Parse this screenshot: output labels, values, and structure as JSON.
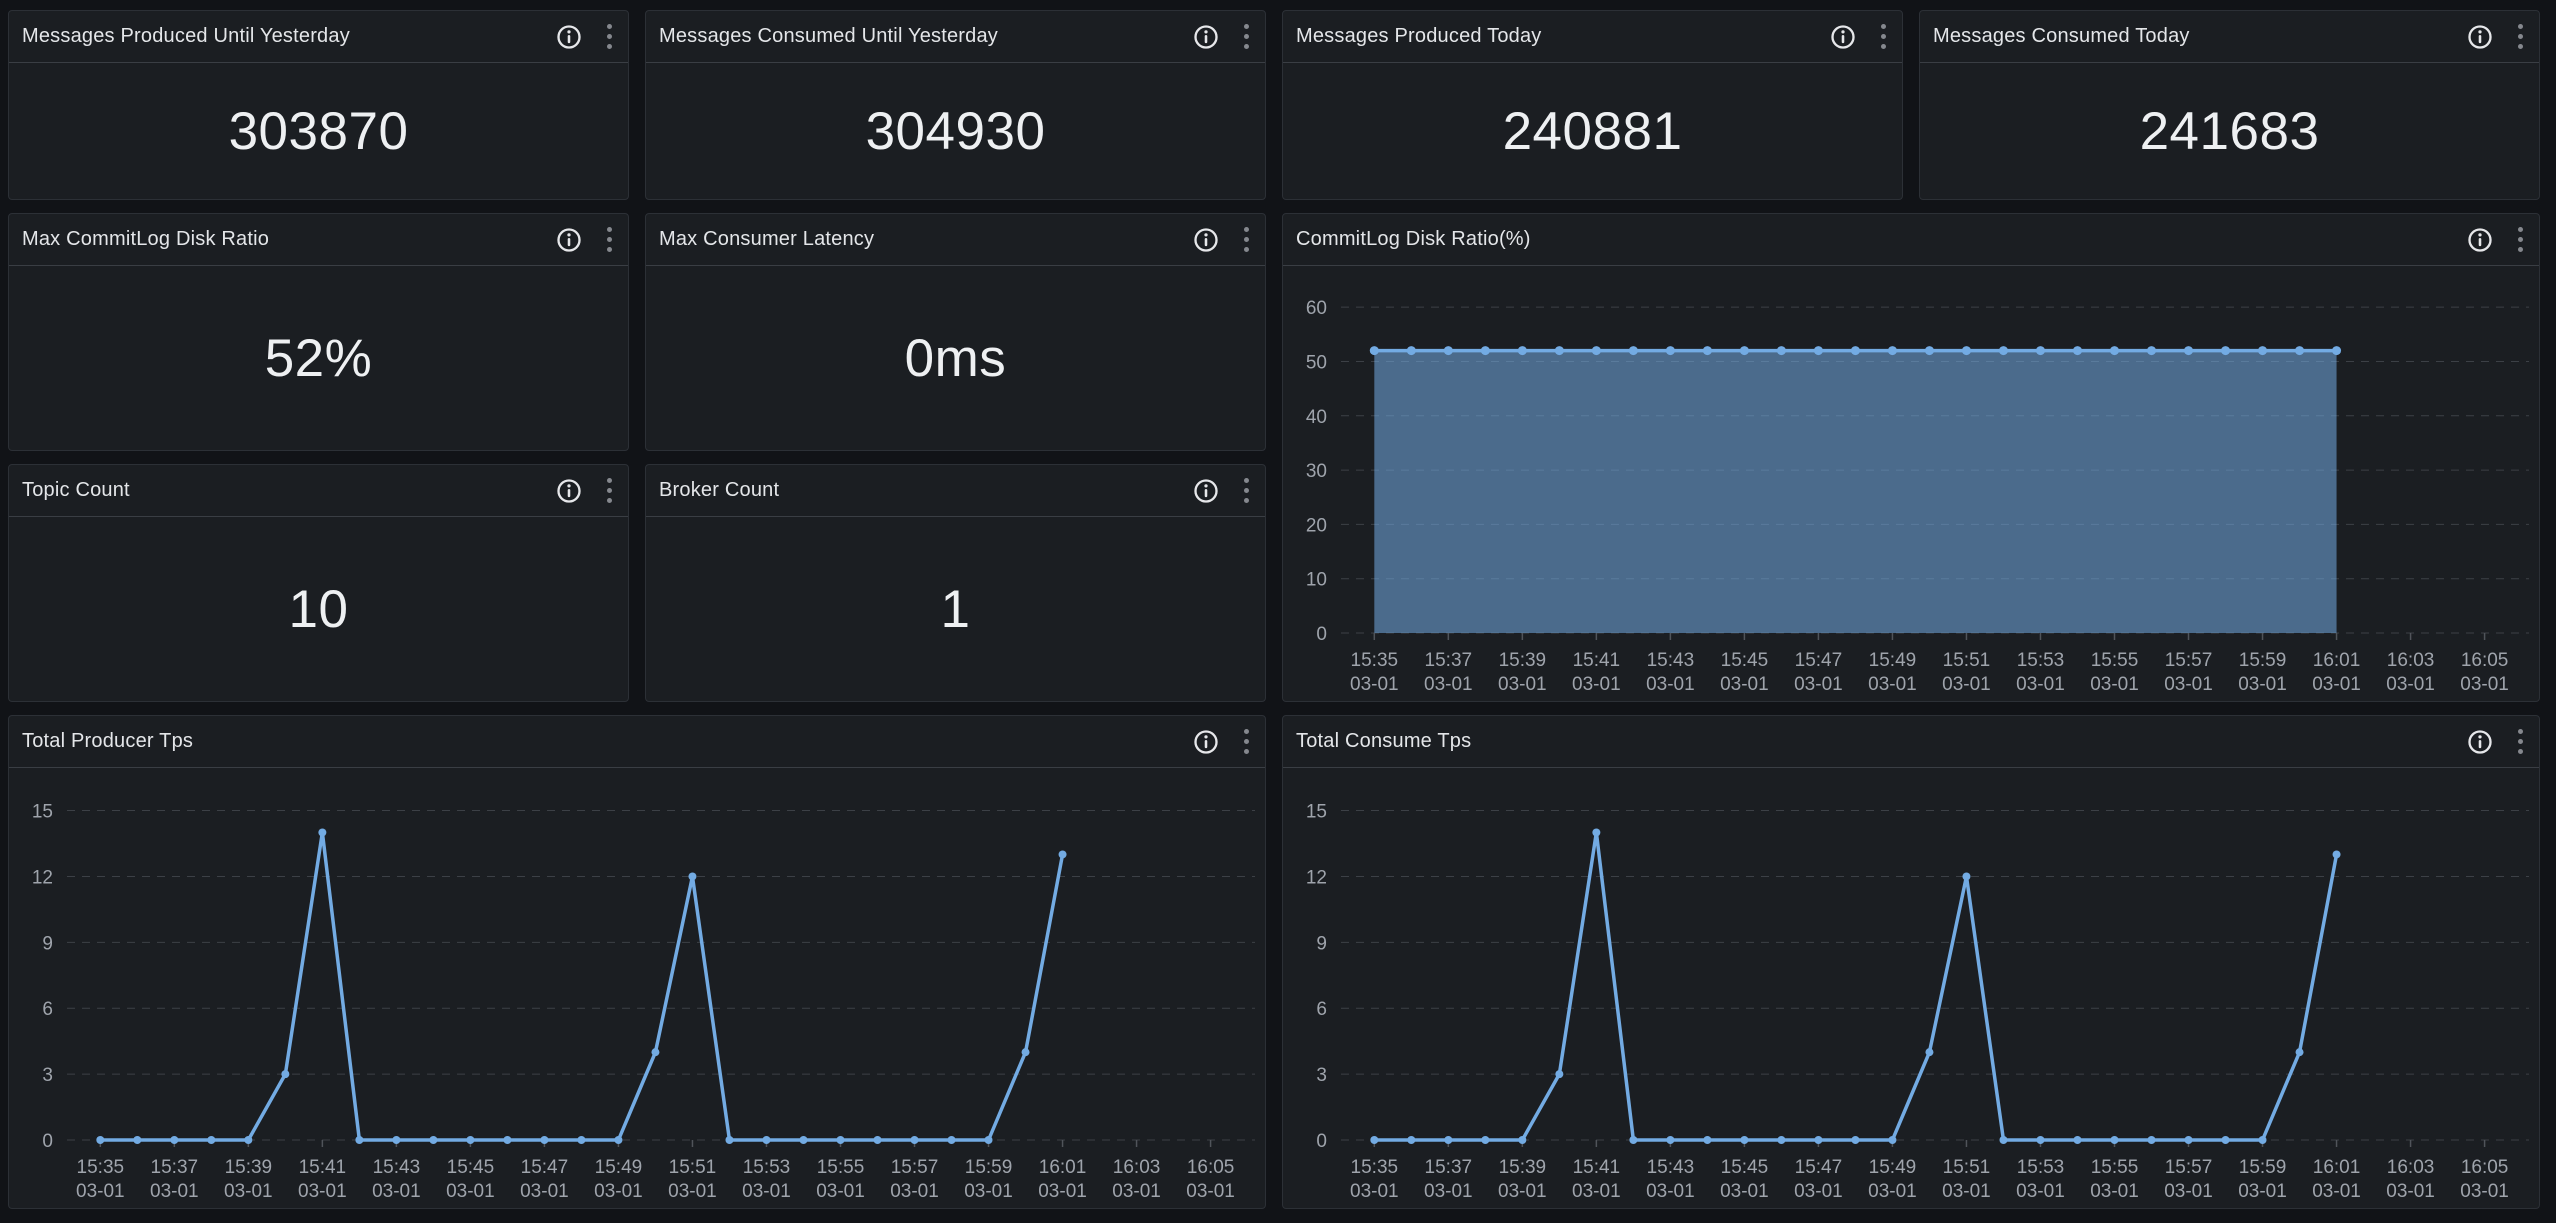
{
  "theme": {
    "page_bg": "#111317",
    "panel_bg": "#1b1e22",
    "panel_border": "#2c3036",
    "title_color": "#e4e6e9",
    "value_color": "#eef0f2",
    "axis_text_color": "#9fa4ac",
    "gridline_color": "#3c4046",
    "series_blue": "#73abe3"
  },
  "panels": {
    "stats": [
      {
        "title": "Messages Produced Until Yesterday",
        "value": "303870"
      },
      {
        "title": "Messages Consumed Until Yesterday",
        "value": "304930"
      },
      {
        "title": "Messages Produced Today",
        "value": "240881"
      },
      {
        "title": "Messages Consumed Today",
        "value": "241683"
      },
      {
        "title": "Max CommitLog Disk Ratio",
        "value": "52%"
      },
      {
        "title": "Max Consumer Latency",
        "value": "0ms"
      },
      {
        "title": "Topic Count",
        "value": "10"
      },
      {
        "title": "Broker Count",
        "value": "1"
      }
    ],
    "icons": {
      "info": "info-icon",
      "menu": "kebab-menu-icon"
    }
  },
  "chart_data": [
    {
      "id": "commitlog-disk-ratio",
      "type": "area",
      "title": "CommitLog Disk Ratio(%)",
      "line_color": "#73abe3",
      "fill_opacity": 0.55,
      "marker_radius": 4.5,
      "line_width": 3.5,
      "grid": true,
      "legend": "hidden",
      "ylim": [
        0,
        65
      ],
      "y_ticks": [
        0,
        10,
        20,
        30,
        40,
        50,
        60
      ],
      "x_axis_minutes": [
        -0.9,
        31.2
      ],
      "start_time": "15:35",
      "interval_minutes": 1,
      "values": [
        52,
        52,
        52,
        52,
        52,
        52,
        52,
        52,
        52,
        52,
        52,
        52,
        52,
        52,
        52,
        52,
        52,
        52,
        52,
        52,
        52,
        52,
        52,
        52,
        52,
        52,
        52
      ],
      "x_ticks": [
        {
          "t": "15:35",
          "d": "03-01",
          "m": 0
        },
        {
          "t": "15:37",
          "d": "03-01",
          "m": 2
        },
        {
          "t": "15:39",
          "d": "03-01",
          "m": 4
        },
        {
          "t": "15:41",
          "d": "03-01",
          "m": 6
        },
        {
          "t": "15:43",
          "d": "03-01",
          "m": 8
        },
        {
          "t": "15:45",
          "d": "03-01",
          "m": 10
        },
        {
          "t": "15:47",
          "d": "03-01",
          "m": 12
        },
        {
          "t": "15:49",
          "d": "03-01",
          "m": 14
        },
        {
          "t": "15:51",
          "d": "03-01",
          "m": 16
        },
        {
          "t": "15:53",
          "d": "03-01",
          "m": 18
        },
        {
          "t": "15:55",
          "d": "03-01",
          "m": 20
        },
        {
          "t": "15:57",
          "d": "03-01",
          "m": 22
        },
        {
          "t": "15:59",
          "d": "03-01",
          "m": 24
        },
        {
          "t": "16:01",
          "d": "03-01",
          "m": 26
        },
        {
          "t": "16:03",
          "d": "03-01",
          "m": 28
        },
        {
          "t": "16:05",
          "d": "03-01",
          "m": 30
        }
      ]
    },
    {
      "id": "total-producer-tps",
      "type": "line",
      "title": "Total Producer Tps",
      "line_color": "#73abe3",
      "fill_opacity": 0,
      "marker_radius": 4,
      "line_width": 3.5,
      "grid": true,
      "legend": "hidden",
      "ylim": [
        0,
        16.3
      ],
      "y_ticks": [
        0,
        3,
        6,
        9,
        12,
        15
      ],
      "x_axis_minutes": [
        -0.9,
        31.2
      ],
      "start_time": "15:35",
      "interval_minutes": 1,
      "values": [
        0,
        0,
        0,
        0,
        0,
        3,
        14,
        0,
        0,
        0,
        0,
        0,
        0,
        0,
        0,
        4,
        12,
        0,
        0,
        0,
        0,
        0,
        0,
        0,
        0,
        4,
        13
      ],
      "x_ticks": [
        {
          "t": "15:35",
          "d": "03-01",
          "m": 0
        },
        {
          "t": "15:37",
          "d": "03-01",
          "m": 2
        },
        {
          "t": "15:39",
          "d": "03-01",
          "m": 4
        },
        {
          "t": "15:41",
          "d": "03-01",
          "m": 6
        },
        {
          "t": "15:43",
          "d": "03-01",
          "m": 8
        },
        {
          "t": "15:45",
          "d": "03-01",
          "m": 10
        },
        {
          "t": "15:47",
          "d": "03-01",
          "m": 12
        },
        {
          "t": "15:49",
          "d": "03-01",
          "m": 14
        },
        {
          "t": "15:51",
          "d": "03-01",
          "m": 16
        },
        {
          "t": "15:53",
          "d": "03-01",
          "m": 18
        },
        {
          "t": "15:55",
          "d": "03-01",
          "m": 20
        },
        {
          "t": "15:57",
          "d": "03-01",
          "m": 22
        },
        {
          "t": "15:59",
          "d": "03-01",
          "m": 24
        },
        {
          "t": "16:01",
          "d": "03-01",
          "m": 26
        },
        {
          "t": "16:03",
          "d": "03-01",
          "m": 28
        },
        {
          "t": "16:05",
          "d": "03-01",
          "m": 30
        }
      ]
    },
    {
      "id": "total-consume-tps",
      "type": "line",
      "title": "Total Consume Tps",
      "line_color": "#73abe3",
      "fill_opacity": 0,
      "marker_radius": 4,
      "line_width": 3.5,
      "grid": true,
      "legend": "hidden",
      "ylim": [
        0,
        16.3
      ],
      "y_ticks": [
        0,
        3,
        6,
        9,
        12,
        15
      ],
      "x_axis_minutes": [
        -0.9,
        31.2
      ],
      "start_time": "15:35",
      "interval_minutes": 1,
      "values": [
        0,
        0,
        0,
        0,
        0,
        3,
        14,
        0,
        0,
        0,
        0,
        0,
        0,
        0,
        0,
        4,
        12,
        0,
        0,
        0,
        0,
        0,
        0,
        0,
        0,
        4,
        13
      ],
      "x_ticks": [
        {
          "t": "15:35",
          "d": "03-01",
          "m": 0
        },
        {
          "t": "15:37",
          "d": "03-01",
          "m": 2
        },
        {
          "t": "15:39",
          "d": "03-01",
          "m": 4
        },
        {
          "t": "15:41",
          "d": "03-01",
          "m": 6
        },
        {
          "t": "15:43",
          "d": "03-01",
          "m": 8
        },
        {
          "t": "15:45",
          "d": "03-01",
          "m": 10
        },
        {
          "t": "15:47",
          "d": "03-01",
          "m": 12
        },
        {
          "t": "15:49",
          "d": "03-01",
          "m": 14
        },
        {
          "t": "15:51",
          "d": "03-01",
          "m": 16
        },
        {
          "t": "15:53",
          "d": "03-01",
          "m": 18
        },
        {
          "t": "15:55",
          "d": "03-01",
          "m": 20
        },
        {
          "t": "15:57",
          "d": "03-01",
          "m": 22
        },
        {
          "t": "15:59",
          "d": "03-01",
          "m": 24
        },
        {
          "t": "16:01",
          "d": "03-01",
          "m": 26
        },
        {
          "t": "16:03",
          "d": "03-01",
          "m": 28
        },
        {
          "t": "16:05",
          "d": "03-01",
          "m": 30
        }
      ]
    }
  ]
}
